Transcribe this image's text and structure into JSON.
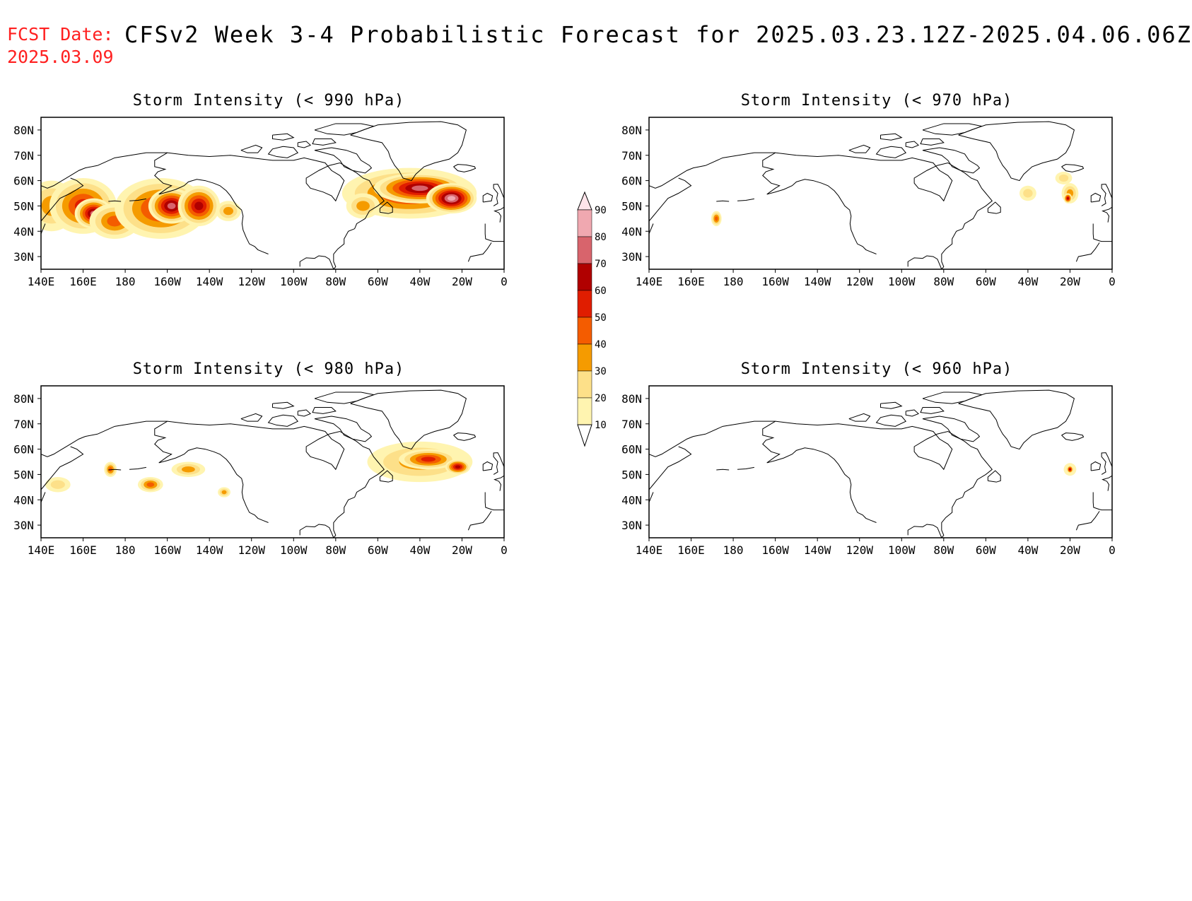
{
  "header": {
    "fcst_label": "FCST Date:",
    "fcst_date": "2025.03.09",
    "title": "CFSv2 Week 3-4 Probabilistic Forecast for 2025.03.23.12Z-2025.04.06.06Z"
  },
  "map_axes": {
    "lon_labels": [
      "140E",
      "160E",
      "180",
      "160W",
      "140W",
      "120W",
      "100W",
      "80W",
      "60W",
      "40W",
      "20W",
      "0"
    ],
    "lat_labels": [
      "80N",
      "70N",
      "60N",
      "50N",
      "40N",
      "30N"
    ],
    "lon_range": [
      "140E",
      "0"
    ],
    "lat_range": [
      "25N",
      "85N"
    ]
  },
  "colors": {
    "levels": [
      10,
      20,
      30,
      40,
      50,
      60,
      70,
      80,
      90
    ],
    "fills": [
      "#fff4b0",
      "#fde089",
      "#f59b00",
      "#f45c00",
      "#e01d00",
      "#b00000",
      "#d8646c",
      "#f0a8b0",
      "#fde4ea"
    ],
    "coastline": "#000000",
    "title_red": "#ff2020"
  },
  "colorbar": {
    "labels": [
      "90",
      "80",
      "70",
      "60",
      "50",
      "40",
      "30",
      "20",
      "10"
    ]
  },
  "panels": [
    {
      "id": "p1",
      "title": "Storm Intensity (< 990 hPa)",
      "blobs": [
        {
          "lon": -215,
          "lat": 50,
          "rx": 12,
          "ry": 10,
          "level": 2
        },
        {
          "lon": -200,
          "lat": 50,
          "rx": 16,
          "ry": 11,
          "level": 4
        },
        {
          "lon": -195,
          "lat": 47,
          "rx": 9,
          "ry": 6,
          "level": 6
        },
        {
          "lon": -185,
          "lat": 44,
          "rx": 12,
          "ry": 7,
          "level": 3
        },
        {
          "lon": -163,
          "lat": 49,
          "rx": 22,
          "ry": 12,
          "level": 4
        },
        {
          "lon": -158,
          "lat": 50,
          "rx": 11,
          "ry": 7,
          "level": 6
        },
        {
          "lon": -145,
          "lat": 50,
          "rx": 10,
          "ry": 8,
          "level": 5
        },
        {
          "lon": -131,
          "lat": 48,
          "rx": 6,
          "ry": 4,
          "level": 2
        },
        {
          "lon": -45,
          "lat": 55,
          "rx": 32,
          "ry": 10,
          "level": 4
        },
        {
          "lon": -40,
          "lat": 57,
          "rx": 22,
          "ry": 6,
          "level": 6
        },
        {
          "lon": -25,
          "lat": 53,
          "rx": 12,
          "ry": 6,
          "level": 7
        },
        {
          "lon": -67,
          "lat": 50,
          "rx": 8,
          "ry": 5,
          "level": 2
        }
      ]
    },
    {
      "id": "p2",
      "title": "Storm Intensity (< 970 hPa)",
      "blobs": [
        {
          "lon": -188,
          "lat": 45,
          "rx": 2.5,
          "ry": 3,
          "level": 3
        },
        {
          "lon": -40,
          "lat": 55,
          "rx": 4,
          "ry": 3,
          "level": 1
        },
        {
          "lon": -20,
          "lat": 55,
          "rx": 4,
          "ry": 4,
          "level": 2
        },
        {
          "lon": -21,
          "lat": 53,
          "rx": 2,
          "ry": 2,
          "level": 5
        },
        {
          "lon": -23,
          "lat": 61,
          "rx": 4,
          "ry": 2.5,
          "level": 1
        }
      ]
    },
    {
      "id": "p3",
      "title": "Storm Intensity (< 980 hPa)",
      "blobs": [
        {
          "lon": -212,
          "lat": 46,
          "rx": 6,
          "ry": 3,
          "level": 1
        },
        {
          "lon": -187,
          "lat": 52,
          "rx": 3,
          "ry": 3,
          "level": 3
        },
        {
          "lon": -168,
          "lat": 46,
          "rx": 6,
          "ry": 3,
          "level": 3
        },
        {
          "lon": -150,
          "lat": 52,
          "rx": 8,
          "ry": 3,
          "level": 2
        },
        {
          "lon": -133,
          "lat": 43,
          "rx": 3,
          "ry": 2,
          "level": 2
        },
        {
          "lon": -40,
          "lat": 55,
          "rx": 25,
          "ry": 8,
          "level": 2
        },
        {
          "lon": -36,
          "lat": 56,
          "rx": 14,
          "ry": 4,
          "level": 4
        },
        {
          "lon": -22,
          "lat": 53,
          "rx": 6,
          "ry": 3,
          "level": 5
        }
      ]
    },
    {
      "id": "p4",
      "title": "Storm Intensity (< 960 hPa)",
      "blobs": [
        {
          "lon": -20,
          "lat": 52,
          "rx": 3,
          "ry": 2.5,
          "level": 1
        },
        {
          "lon": -20,
          "lat": 52,
          "rx": 1.6,
          "ry": 1.6,
          "level": 5
        }
      ]
    }
  ]
}
